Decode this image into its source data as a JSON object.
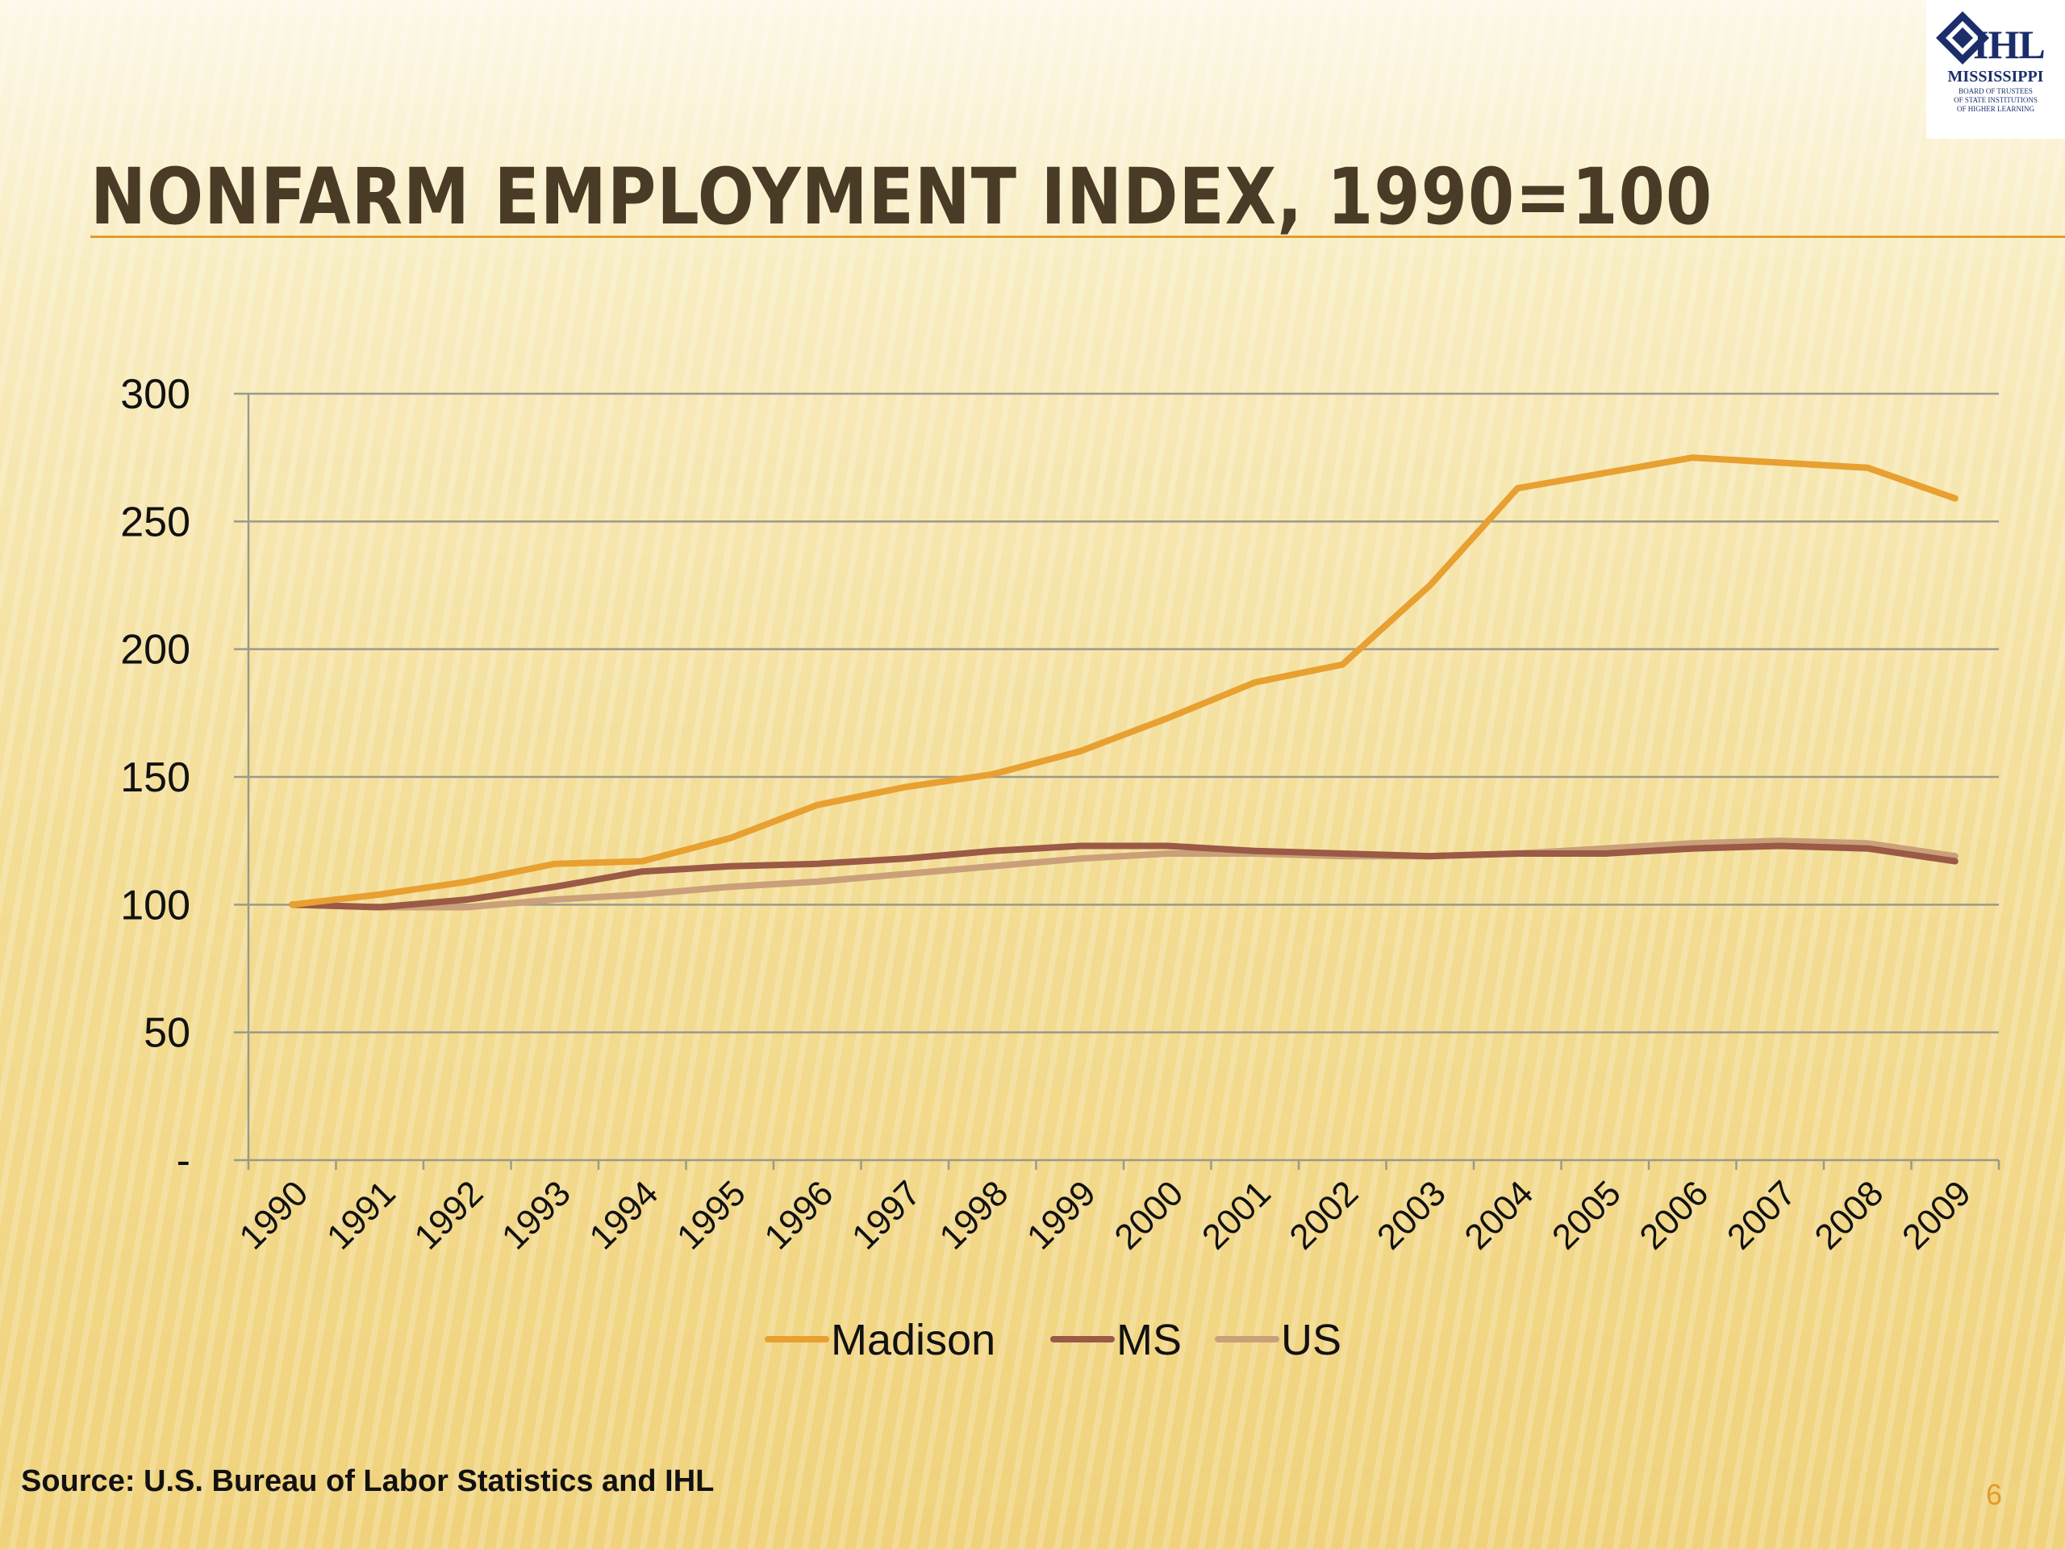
{
  "slide": {
    "title": "NONFARM EMPLOYMENT INDEX, 1990=100",
    "source": "Source: U.S. Bureau of Labor Statistics and IHL",
    "page_number": "6"
  },
  "logo": {
    "letters": "IHL",
    "name": "MISSISSIPPI",
    "subtitle_lines": [
      "BOARD OF TRUSTEES",
      "OF STATE INSTITUTIONS",
      "OF HIGHER LEARNING"
    ]
  },
  "colors": {
    "title": "#4a3b26",
    "accent": "#e39a2a",
    "madison": "#e8a030",
    "ms": "#9a5a46",
    "us": "#c9a07a",
    "gridline": "#9a9a8a"
  },
  "chart_data": {
    "type": "line",
    "title": "",
    "xlabel": "",
    "ylabel": "",
    "ylim": [
      0,
      300
    ],
    "yticks": [
      0,
      50,
      100,
      150,
      200,
      250,
      300
    ],
    "ytick_labels": [
      "-",
      "50",
      "100",
      "150",
      "200",
      "250",
      "300"
    ],
    "grid": true,
    "legend_position": "bottom",
    "categories": [
      "1990",
      "1991",
      "1992",
      "1993",
      "1994",
      "1995",
      "1996",
      "1997",
      "1998",
      "1999",
      "2000",
      "2001",
      "2002",
      "2003",
      "2004",
      "2005",
      "2006",
      "2007",
      "2008",
      "2009"
    ],
    "series": [
      {
        "name": "Madison",
        "color": "#e8a030",
        "values": [
          100,
          104,
          109,
          116,
          117,
          126,
          139,
          146,
          151,
          160,
          173,
          187,
          194,
          225,
          263,
          269,
          275,
          273,
          271,
          259
        ]
      },
      {
        "name": "MS",
        "color": "#9a5a46",
        "values": [
          100,
          99,
          102,
          107,
          113,
          115,
          116,
          118,
          121,
          123,
          123,
          121,
          120,
          119,
          120,
          120,
          122,
          123,
          122,
          117
        ]
      },
      {
        "name": "US",
        "color": "#c9a07a",
        "values": [
          100,
          99,
          99,
          102,
          104,
          107,
          109,
          112,
          115,
          118,
          120,
          120,
          119,
          119,
          120,
          122,
          124,
          125,
          124,
          119
        ]
      }
    ]
  }
}
